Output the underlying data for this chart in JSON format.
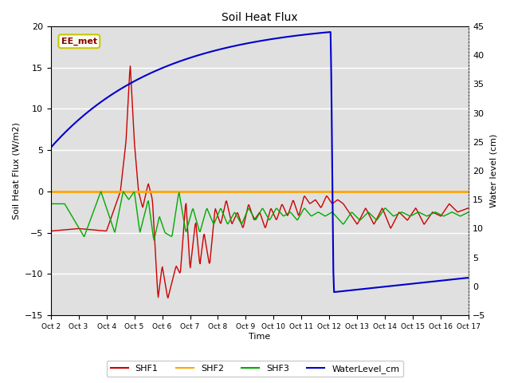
{
  "title": "Soil Heat Flux",
  "ylabel_left": "Soil Heat Flux (W/m2)",
  "ylabel_right": "Water level (cm)",
  "xlabel": "Time",
  "ylim_left": [
    -15,
    20
  ],
  "ylim_right": [
    -5,
    45
  ],
  "background_color": "#e8e8e8",
  "plot_bg_color": "#e0e0e0",
  "annotation_text": "EE_met",
  "annotation_box_color": "#fffff0",
  "annotation_border_color": "#c8c800",
  "annotation_text_color": "#880000",
  "xtick_labels": [
    "Oct 2",
    "Oct 3",
    "Oct 4",
    "Oct 5",
    "Oct 6",
    "Oct 7",
    "Oct 8",
    "Oct 9",
    "Oct 10",
    "Oct 11",
    "Oct 12",
    "Oct 13",
    "Oct 14",
    "Oct 15",
    "Oct 16",
    "Oct 17"
  ],
  "legend_labels": [
    "SHF1",
    "SHF2",
    "SHF3",
    "WaterLevel_cm"
  ],
  "colors": {
    "SHF1": "#cc0000",
    "SHF2": "#ffa500",
    "SHF3": "#00aa00",
    "WaterLevel_cm": "#0000cc"
  },
  "yticks_left": [
    -15,
    -10,
    -5,
    0,
    5,
    10,
    15,
    20
  ],
  "yticks_right": [
    -5,
    0,
    5,
    10,
    15,
    20,
    25,
    30,
    35,
    40,
    45
  ],
  "grid_color": "#ffffff",
  "grid_linewidth": 1.0
}
